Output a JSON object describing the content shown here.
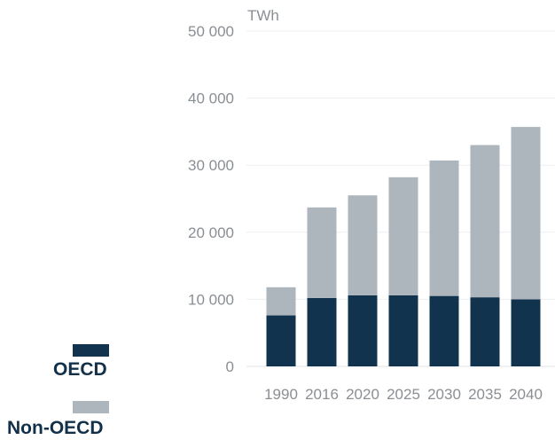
{
  "chart_data": {
    "type": "bar",
    "stacked": true,
    "unit": "TWh",
    "categories": [
      "1990",
      "2016",
      "2020",
      "2025",
      "2030",
      "2035",
      "2040"
    ],
    "series": [
      {
        "name": "OECD",
        "color": "#12334d",
        "values": [
          7600,
          10200,
          10600,
          10600,
          10500,
          10300,
          10000
        ]
      },
      {
        "name": "Non-OECD",
        "color": "#adb6bd",
        "values": [
          4200,
          13500,
          14900,
          17600,
          20200,
          22700,
          25700
        ]
      }
    ],
    "ylim": [
      0,
      50000
    ],
    "yticks": [
      0,
      10000,
      20000,
      30000,
      40000,
      50000
    ],
    "ytick_labels": [
      "0",
      "10 000",
      "20 000",
      "30 000",
      "40 000",
      "50 000"
    ],
    "grid": true,
    "legend_position": "bottom-left"
  }
}
